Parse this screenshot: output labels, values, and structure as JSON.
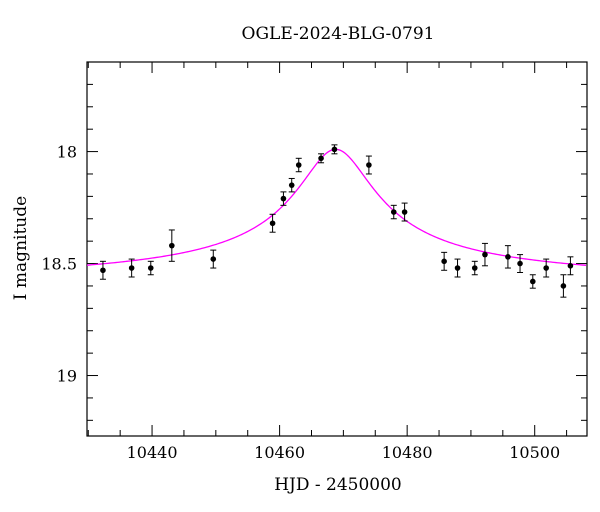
{
  "chart_data": {
    "type": "scatter",
    "title": "OGLE-2024-BLG-0791",
    "xlabel": "HJD - 2450000",
    "ylabel": "I magnitude",
    "xlim": [
      10429.8,
      10508.2
    ],
    "ylim": [
      19.27,
      17.6
    ],
    "y_inverted": true,
    "x_ticks": [
      10440,
      10460,
      10480,
      10500
    ],
    "y_ticks": [
      18,
      18.5,
      19
    ],
    "y_tick_labels": [
      "18",
      "18.5",
      "19"
    ],
    "grid": false,
    "colors": {
      "points": "#000000",
      "model": "#ff00ff",
      "frame": "#000000"
    },
    "series": [
      {
        "kind": "points_with_errorbars",
        "x": [
          10432.3,
          10436.8,
          10439.8,
          10443.1,
          10449.6,
          10458.9,
          10460.6,
          10461.9,
          10463.0,
          10466.5,
          10468.6,
          10474.0,
          10477.9,
          10479.6,
          10485.8,
          10487.9,
          10490.6,
          10492.2,
          10495.8,
          10497.7,
          10499.7,
          10501.8,
          10504.5,
          10505.6
        ],
        "y": [
          18.53,
          18.52,
          18.52,
          18.42,
          18.48,
          18.32,
          18.21,
          18.15,
          18.06,
          18.03,
          17.99,
          18.06,
          18.27,
          18.27,
          18.49,
          18.52,
          18.52,
          18.46,
          18.47,
          18.5,
          18.58,
          18.52,
          18.6,
          18.51
        ],
        "yerr": [
          0.04,
          0.04,
          0.03,
          0.07,
          0.04,
          0.04,
          0.03,
          0.03,
          0.03,
          0.02,
          0.02,
          0.04,
          0.03,
          0.04,
          0.04,
          0.04,
          0.03,
          0.05,
          0.05,
          0.04,
          0.03,
          0.04,
          0.05,
          0.04
        ]
      },
      {
        "kind": "model_curve",
        "t0": 10468.8,
        "tE": 6.0,
        "baseline": 18.6,
        "peak": 17.99
      }
    ]
  }
}
